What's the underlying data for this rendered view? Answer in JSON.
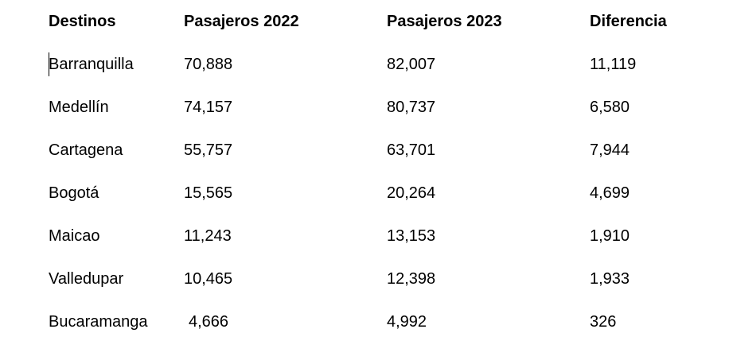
{
  "table": {
    "header": [
      "Destinos",
      "Pasajeros 2022",
      "Pasajeros 2023",
      "Diferencia"
    ],
    "rows": [
      [
        "Barranquilla",
        "70,888",
        "82,007",
        "11,119"
      ],
      [
        "Medellín",
        "74,157",
        "80,737",
        "6,580"
      ],
      [
        "Cartagena",
        "55,757",
        "63,701",
        "7,944"
      ],
      [
        "Bogotá",
        "15,565",
        "20,264",
        "4,699"
      ],
      [
        "Maicao",
        "11,243",
        "13,153",
        "1,910"
      ],
      [
        "Valledupar",
        "10,465",
        "12,398",
        "1,933"
      ],
      [
        "Bucaramanga",
        "4,666",
        "4,992",
        "326"
      ]
    ]
  }
}
